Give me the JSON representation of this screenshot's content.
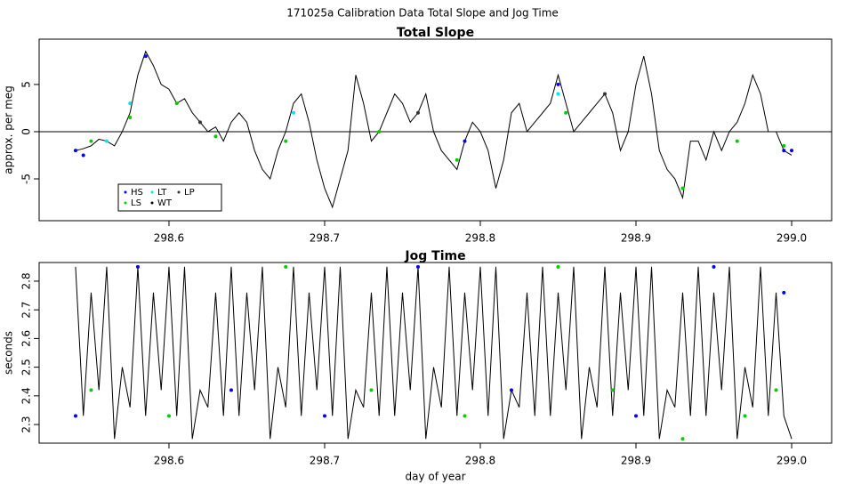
{
  "title": "171025a   Calibration Data Total Slope and Jog Time",
  "chart_data": [
    {
      "type": "line",
      "title": "Total Slope",
      "ylabel": "approx. per meg",
      "xlim": [
        298.5166,
        299.0257
      ],
      "ylim": [
        -9.43,
        9.8
      ],
      "xticks": [
        298.6,
        298.7,
        298.8,
        298.9,
        {
          "value": 299,
          "label": "299.0"
        }
      ],
      "yticks": [
        -5,
        0,
        5
      ],
      "hline": 0,
      "legend": "bottom-left",
      "series": [
        {
          "name": "HS",
          "color": "#0000ff",
          "mode": "points",
          "x": [
            298.54,
            298.585,
            298.79,
            298.85,
            299.0,
            298.545,
            298.995
          ],
          "values": [
            -2,
            8,
            -1,
            5,
            -2,
            -2.5,
            -2
          ]
        },
        {
          "name": "LS",
          "color": "#00cc00",
          "mode": "points",
          "x": [
            298.55,
            298.575,
            298.63,
            298.675,
            298.735,
            298.785,
            298.855,
            298.93,
            298.965,
            298.995,
            298.605
          ],
          "values": [
            -1,
            1.5,
            -0.5,
            -1,
            0,
            -3,
            2,
            -6,
            -1,
            -1.5,
            3
          ]
        },
        {
          "name": "LT",
          "color": "#00e5ee",
          "mode": "points",
          "x": [
            298.575,
            298.85,
            298.68,
            298.56
          ],
          "values": [
            3,
            4,
            2,
            -1
          ]
        },
        {
          "name": "WT",
          "color": "#000000",
          "mode": "line",
          "x": [
            298.54,
            298.545,
            298.55,
            298.555,
            298.56,
            298.565,
            298.57,
            298.575,
            298.58,
            298.585,
            298.59,
            298.595,
            298.6,
            298.605,
            298.61,
            298.615,
            298.62,
            298.625,
            298.63,
            298.635,
            298.64,
            298.645,
            298.65,
            298.655,
            298.66,
            298.665,
            298.67,
            298.675,
            298.68,
            298.685,
            298.69,
            298.695,
            298.7,
            298.705,
            298.71,
            298.715,
            298.72,
            298.725,
            298.73,
            298.735,
            298.74,
            298.745,
            298.75,
            298.755,
            298.76,
            298.765,
            298.77,
            298.775,
            298.78,
            298.785,
            298.79,
            298.795,
            298.8,
            298.805,
            298.81,
            298.815,
            298.82,
            298.825,
            298.83,
            298.835,
            298.84,
            298.845,
            298.85,
            298.855,
            298.86,
            298.865,
            298.87,
            298.875,
            298.88,
            298.885,
            298.89,
            298.895,
            298.9,
            298.905,
            298.91,
            298.915,
            298.92,
            298.925,
            298.93,
            298.935,
            298.94,
            298.945,
            298.95,
            298.955,
            298.96,
            298.965,
            298.97,
            298.975,
            298.98,
            298.985,
            298.99,
            298.995,
            299.0
          ],
          "values": [
            -2,
            -1.8,
            -1.5,
            -0.8,
            -1,
            -1.5,
            0,
            2,
            6,
            8.5,
            7,
            5,
            4.5,
            3,
            3.5,
            2,
            1,
            0,
            0.5,
            -1,
            1,
            2,
            1,
            -2,
            -4,
            -5,
            -2,
            0,
            3,
            4,
            1,
            -3,
            -6,
            -8,
            -5,
            -2,
            6,
            3,
            -1,
            0,
            2,
            4,
            3,
            1,
            2,
            4,
            0,
            -2,
            -3,
            -4,
            -1,
            1,
            0,
            -2,
            -6,
            -3,
            2,
            3,
            0,
            1,
            2,
            3,
            6,
            3,
            0,
            1,
            2,
            3,
            4,
            2,
            -2,
            0,
            5,
            8,
            4,
            -2,
            -4,
            -5,
            -7,
            -1,
            -1,
            -3,
            0,
            -2,
            0,
            1,
            3,
            6,
            4,
            0,
            0,
            -2,
            -2.5
          ]
        },
        {
          "name": "LP",
          "color": "#333333",
          "mode": "points",
          "x": [
            298.62,
            298.76,
            298.88
          ],
          "values": [
            1,
            2,
            4
          ]
        }
      ]
    },
    {
      "type": "line",
      "title": "Jog Time",
      "ylabel": "seconds",
      "xlabel": "day of year",
      "xlim": [
        298.5166,
        299.0257
      ],
      "ylim": [
        2.235,
        2.865
      ],
      "xticks": [
        298.6,
        298.7,
        298.8,
        298.9,
        {
          "value": 299,
          "label": "299.0"
        }
      ],
      "yticks": [
        2.3,
        2.4,
        2.5,
        2.6,
        2.7,
        2.8
      ],
      "series": [
        {
          "color": "#000000",
          "mode": "line",
          "x": [
            298.54,
            298.545,
            298.55,
            298.555,
            298.56,
            298.565,
            298.57,
            298.575,
            298.58,
            298.585,
            298.59,
            298.595,
            298.6,
            298.605,
            298.61,
            298.615,
            298.62,
            298.625,
            298.63,
            298.635,
            298.64,
            298.645,
            298.65,
            298.655,
            298.66,
            298.665,
            298.67,
            298.675,
            298.68,
            298.685,
            298.69,
            298.695,
            298.7,
            298.705,
            298.71,
            298.715,
            298.72,
            298.725,
            298.73,
            298.735,
            298.74,
            298.745,
            298.75,
            298.755,
            298.76,
            298.765,
            298.77,
            298.775,
            298.78,
            298.785,
            298.79,
            298.795,
            298.8,
            298.805,
            298.81,
            298.815,
            298.82,
            298.825,
            298.83,
            298.835,
            298.84,
            298.845,
            298.85,
            298.855,
            298.86,
            298.865,
            298.87,
            298.875,
            298.88,
            298.885,
            298.89,
            298.895,
            298.9,
            298.905,
            298.91,
            298.915,
            298.92,
            298.925,
            298.93,
            298.935,
            298.94,
            298.945,
            298.95,
            298.955,
            298.96,
            298.965,
            298.97,
            298.975,
            298.98,
            298.985,
            298.99,
            298.995,
            299.0
          ],
          "values": [
            2.85,
            2.33,
            2.76,
            2.42,
            2.85,
            2.25,
            2.5,
            2.36,
            2.85,
            2.33,
            2.76,
            2.42,
            2.85,
            2.33,
            2.85,
            2.25,
            2.42,
            2.36,
            2.76,
            2.33,
            2.85,
            2.33,
            2.76,
            2.42,
            2.85,
            2.25,
            2.5,
            2.36,
            2.85,
            2.33,
            2.76,
            2.42,
            2.85,
            2.33,
            2.85,
            2.25,
            2.42,
            2.36,
            2.76,
            2.33,
            2.85,
            2.33,
            2.76,
            2.42,
            2.85,
            2.25,
            2.5,
            2.36,
            2.85,
            2.33,
            2.76,
            2.42,
            2.85,
            2.33,
            2.85,
            2.25,
            2.42,
            2.36,
            2.76,
            2.33,
            2.85,
            2.33,
            2.76,
            2.42,
            2.85,
            2.25,
            2.5,
            2.36,
            2.85,
            2.33,
            2.76,
            2.42,
            2.85,
            2.33,
            2.85,
            2.25,
            2.42,
            2.36,
            2.76,
            2.33,
            2.85,
            2.33,
            2.76,
            2.42,
            2.85,
            2.25,
            2.5,
            2.36,
            2.85,
            2.33,
            2.76,
            2.33,
            2.25
          ]
        },
        {
          "color": "#00cc00",
          "mode": "points",
          "x": [
            298.55,
            298.6,
            298.675,
            298.73,
            298.79,
            298.85,
            298.885,
            298.93,
            298.97,
            298.99
          ],
          "values": [
            2.42,
            2.33,
            2.85,
            2.42,
            2.33,
            2.85,
            2.42,
            2.25,
            2.33,
            2.42
          ]
        },
        {
          "color": "#0000ff",
          "mode": "points",
          "x": [
            298.54,
            298.58,
            298.64,
            298.7,
            298.76,
            298.82,
            298.9,
            298.95,
            298.995
          ],
          "values": [
            2.33,
            2.85,
            2.42,
            2.33,
            2.85,
            2.42,
            2.33,
            2.85,
            2.76
          ]
        }
      ]
    }
  ]
}
